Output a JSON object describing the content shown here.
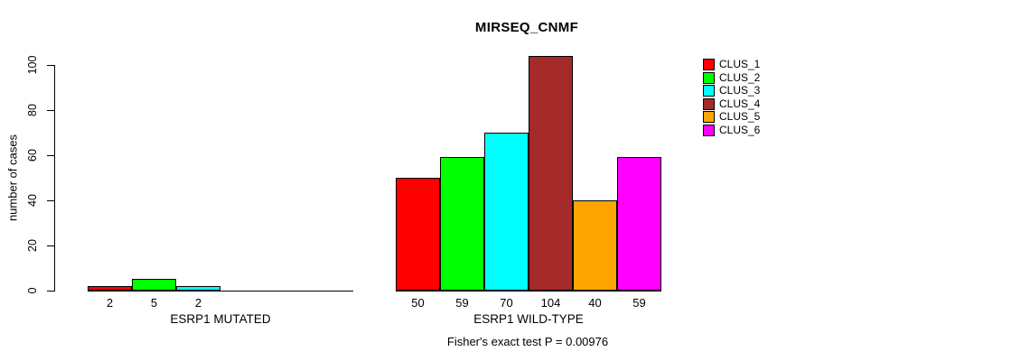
{
  "chart_data": {
    "type": "bar",
    "title": "MIRSEQ_CNMF",
    "ylabel": "number of cases",
    "ylim": [
      0,
      100
    ],
    "yticks": [
      0,
      20,
      40,
      60,
      80,
      100
    ],
    "grid": false,
    "legend_position": "right",
    "series": [
      {
        "name": "CLUS_1",
        "color": "#FF0000"
      },
      {
        "name": "CLUS_2",
        "color": "#00FF00"
      },
      {
        "name": "CLUS_3",
        "color": "#00FFFF"
      },
      {
        "name": "CLUS_4",
        "color": "#A52A2A"
      },
      {
        "name": "CLUS_5",
        "color": "#FFA500"
      },
      {
        "name": "CLUS_6",
        "color": "#FF00FF"
      }
    ],
    "groups": [
      {
        "label": "ESRP1 MUTATED",
        "values": [
          2,
          5,
          2,
          0,
          0,
          0
        ],
        "bar_labels": [
          "2",
          "5",
          "2",
          "",
          "",
          ""
        ]
      },
      {
        "label": "ESRP1 WILD-TYPE",
        "values": [
          50,
          59,
          70,
          104,
          40,
          59
        ],
        "bar_labels": [
          "50",
          "59",
          "70",
          "104",
          "40",
          "59"
        ]
      }
    ],
    "footnote": "Fisher's exact test P = 0.00976"
  }
}
